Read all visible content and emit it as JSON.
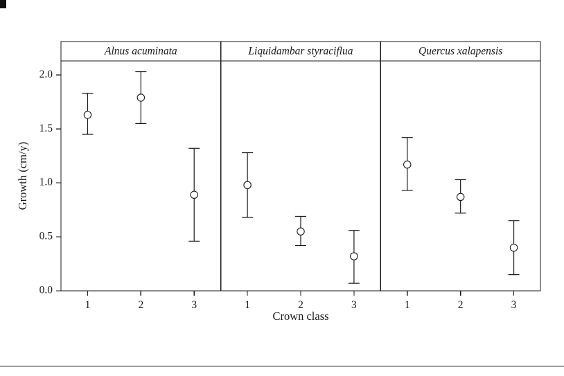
{
  "chart_data": {
    "type": "scatter",
    "title": "",
    "xlabel": "Crown class",
    "ylabel": "Growth (cm/y)",
    "ylim": [
      0.0,
      2.13
    ],
    "yticks": [
      0.0,
      0.5,
      1.0,
      1.5,
      2.0
    ],
    "categories": [
      "1",
      "2",
      "3"
    ],
    "grid": false,
    "legend": "none",
    "marker": "open-circle",
    "error_bars": true,
    "colors": {
      "stroke": "#1a1a1a",
      "panel_border": "#1a1a1a",
      "background": "#ffffff",
      "bottom_rule": "#3f3f3f"
    },
    "panels": [
      {
        "label": "Alnus acuminata",
        "points": [
          {
            "x": "1",
            "mean": 1.63,
            "lower": 1.45,
            "upper": 1.83
          },
          {
            "x": "2",
            "mean": 1.79,
            "lower": 1.55,
            "upper": 2.03
          },
          {
            "x": "3",
            "mean": 0.89,
            "lower": 0.46,
            "upper": 1.32
          }
        ]
      },
      {
        "label": "Liquidambar styraciflua",
        "points": [
          {
            "x": "1",
            "mean": 0.98,
            "lower": 0.68,
            "upper": 1.28
          },
          {
            "x": "2",
            "mean": 0.55,
            "lower": 0.42,
            "upper": 0.69
          },
          {
            "x": "3",
            "mean": 0.32,
            "lower": 0.07,
            "upper": 0.56
          }
        ]
      },
      {
        "label": "Quercus xalapensis",
        "points": [
          {
            "x": "1",
            "mean": 1.17,
            "lower": 0.93,
            "upper": 1.42
          },
          {
            "x": "2",
            "mean": 0.87,
            "lower": 0.72,
            "upper": 1.03
          },
          {
            "x": "3",
            "mean": 0.4,
            "lower": 0.15,
            "upper": 0.65
          }
        ]
      }
    ]
  }
}
